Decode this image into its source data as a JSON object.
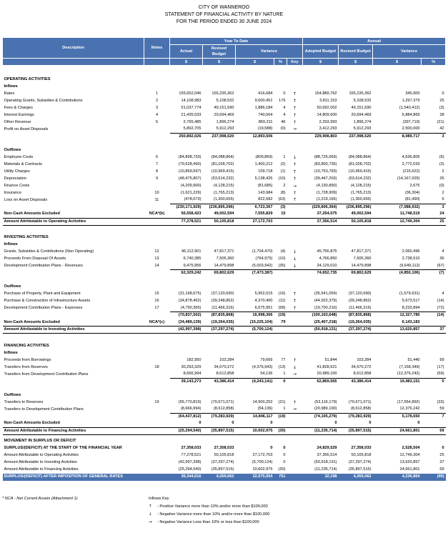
{
  "header": {
    "title": [
      "CITY OF WANNEROO",
      "STATEMENT OF FINANCIAL ACTIVITY BY NATURE",
      "FOR THE PERIOD ENDED 30 JUNE 2024"
    ]
  },
  "columns": {
    "year_to_date": "Year To Date",
    "annual": "Annual",
    "names": [
      "Description",
      "Notes",
      "Actual",
      "Revised Budget",
      "Variance",
      "Adopted Budget",
      "Revised Budget",
      "Variance"
    ],
    "units": [
      "$",
      "$",
      "$",
      "%",
      "Key",
      "$",
      "$",
      "$",
      "%"
    ]
  },
  "sections": [
    {
      "title": "OPERATING ACTIVITIES",
      "inflows": {
        "label": "Inflows",
        "rows": [
          [
            "Rates",
            "1",
            "155,652,046",
            "155,235,362",
            "416,684",
            "0",
            "↑",
            "154,889,762",
            "155,235,362",
            "345,600",
            "0"
          ],
          [
            "Operating Grants, Subsidies & Contributions",
            "2",
            "14,108,983",
            "5,108,532",
            "9,000,451",
            "176",
            "↑",
            "3,811,153",
            "5,108,532",
            "1,297,379",
            "25"
          ],
          [
            "Fees & Charges",
            "3",
            "51,037,774",
            "49,151,590",
            "1,886,184",
            "4",
            "↑",
            "50,692,002",
            "49,151,590",
            "(1,540,412)",
            "(3)"
          ],
          [
            "Interest Earnings",
            "4",
            "21,435,033",
            "20,694,469",
            "740,564",
            "4",
            "↑",
            "14,809,600",
            "20,694,469",
            "5,884,869",
            "28"
          ],
          [
            "Other Revenue",
            "5",
            "2,765,485",
            "1,896,274",
            "869,211",
            "46",
            "↑",
            "2,293,993",
            "1,896,274",
            "(397,719)",
            "(21)"
          ],
          [
            "Profit on Asset Disposals",
            null,
            "5,892,705",
            "5,912,293",
            "(19,588)",
            "(0)",
            "→",
            "3,412,293",
            "5,912,293",
            "2,500,000",
            "42"
          ]
        ],
        "subtotal": [
          null,
          null,
          "250,892,026",
          "237,998,520",
          "12,893,506",
          null,
          null,
          "229,908,803",
          "237,998,520",
          "8,089,717",
          "3"
        ]
      },
      "outflows": {
        "label": "Outflows",
        "rows": [
          [
            "Employee Costs",
            "6",
            "(84,898,733)",
            "(84,088,864)",
            "(809,869)",
            "1",
            "↓",
            "(88,725,669)",
            "(84,088,864)",
            "4,636,805",
            "(6)"
          ],
          [
            "Materials & Contracts",
            "7",
            "(79,628,490)",
            "(81,028,702)",
            "1,400,212",
            "(2)",
            "↑",
            "(83,800,735)",
            "(81,028,702)",
            "2,772,033",
            "(3)"
          ],
          [
            "Utility Charges",
            "8",
            "(10,859,697)",
            "(10,969,415)",
            "109,718",
            "(1)",
            "↑",
            "(10,753,793)",
            "(10,969,415)",
            "(215,622)",
            "2"
          ],
          [
            "Depreciation",
            "9",
            "(48,475,807)",
            "(53,614,232)",
            "5,138,425",
            "(10)",
            "↑",
            "(39,447,203)",
            "(53,614,232)",
            "(14,167,029)",
            "26"
          ],
          [
            "Finance Costs",
            null,
            "(4,209,900)",
            "(4,128,215)",
            "(81,685)",
            "2",
            "→",
            "(4,130,890)",
            "(4,128,215)",
            "2,675",
            "(0)"
          ],
          [
            "Insurance",
            "10",
            "(1,621,229)",
            "(1,765,213)",
            "143,984",
            "(8)",
            "↑",
            "(1,728,909)",
            "(1,765,213)",
            "(36,304)",
            "2"
          ],
          [
            "Loss on Asset Disposals",
            "11",
            "(478,073)",
            "(1,300,655)",
            "822,582",
            "(63)",
            "↑",
            "(1,219,165)",
            "(1,300,655)",
            "(81,490)",
            "6"
          ]
        ],
        "subtotal": [
          null,
          null,
          "(230,171,929)",
          "(236,895,296)",
          "6,723,367",
          "(3)",
          null,
          "(229,806,364)",
          "(236,895,296)",
          "(7,088,932)",
          "3"
        ]
      },
      "non_cash": [
        "Non-Cash Amounts Excluded",
        "NCA*(b)",
        "56,558,423",
        "49,002,594",
        "7,555,829",
        "15",
        null,
        "37,254,075",
        "49,002,594",
        "11,748,519",
        "24"
      ],
      "total": [
        "Amount Attributable to Operating Activities",
        null,
        "77,278,521",
        "50,105,818",
        "27,172,703",
        null,
        null,
        "37,356,514",
        "50,105,818",
        "12,749,304",
        "25"
      ]
    },
    {
      "title": "INVESTING ACTIVITIES",
      "inflows": {
        "label": "Inflows",
        "rows": [
          [
            "Grants, Subsidies & Contributions (Non Operating)",
            "12",
            "46,112,901",
            "47,817,371",
            "(1,704,470)",
            "(4)",
            "↓",
            "45,756,875",
            "47,817,371",
            "2,060,496",
            "4"
          ],
          [
            "Proceeds From Disposal Of Assets",
            "13",
            "6,740,385",
            "7,505,360",
            "(764,975)",
            "(10)",
            "↓",
            "4,766,850",
            "7,505,360",
            "2,738,510",
            "36"
          ],
          [
            "Development Contribution Plans - Revenues",
            "14",
            "9,475,956",
            "14,479,898",
            "(5,003,942)",
            "(35)",
            "↓",
            "24,129,010",
            "14,479,898",
            "(9,649,112)",
            "(67)"
          ]
        ],
        "subtotal": [
          null,
          null,
          "62,329,242",
          "69,802,629",
          "(7,473,387)",
          null,
          null,
          "74,652,735",
          "69,802,629",
          "(4,850,106)",
          "(7)"
        ]
      },
      "outflows": {
        "label": "Outflows",
        "rows": [
          [
            "Purchase of Property, Plant and Equipment",
            "15",
            "(31,168,675)",
            "(37,120,690)",
            "5,952,015",
            "(16)",
            "↑",
            "(35,541,059)",
            "(37,120,690)",
            "(1,579,631)",
            "4"
          ],
          [
            "Purchase & Construction of Infrastructure Assets",
            "16",
            "(34,878,462)",
            "(39,248,862)",
            "4,370,400",
            "(11)",
            "↑",
            "(44,922,379)",
            "(39,248,862)",
            "5,673,517",
            "(14)"
          ],
          [
            "Development Contribution Plans - Expenses",
            "17",
            "(4,790,365)",
            "(11,466,316)",
            "6,675,951",
            "(58)",
            "↑",
            "(19,700,210)",
            "(11,466,316)",
            "8,233,894",
            "(72)"
          ]
        ],
        "subtotal": [
          null,
          null,
          "(70,837,502)",
          "(87,835,868)",
          "16,998,366",
          "(19)",
          null,
          "(100,163,648)",
          "(87,835,868)",
          "12,327,780",
          "(14)"
        ]
      },
      "non_cash": [
        "Non-Cash Amounts Excluded",
        "NCA*(c)",
        "(34,489,139)",
        "(19,264,035)",
        "(15,225,104)",
        "79",
        null,
        "(25,407,218)",
        "(19,264,035)",
        "6,143,183",
        null
      ],
      "total": [
        "Amount Attributable to Investing Activities",
        null,
        "(42,997,398)",
        "(37,297,274)",
        "(5,700,124)",
        null,
        null,
        "(50,918,131)",
        "(37,297,274)",
        "13,620,857",
        "37"
      ]
    },
    {
      "title": "FINANCING ACTIVITIES",
      "inflows": {
        "label": "Inflows",
        "rows": [
          [
            "Proceeds from Borrowings",
            null,
            "182,950",
            "103,284",
            "79,666",
            "77",
            "↑",
            "51,844",
            "103,284",
            "51,440",
            "99"
          ],
          [
            "Transfers from Reserves",
            "18",
            "30,293,329",
            "34,670,272",
            "(4,376,943)",
            "(13)",
            "↓",
            "41,828,621",
            "34,670,272",
            "(7,158,349)",
            "(17)"
          ],
          [
            "Transfers from Development Contribution Plans",
            null,
            "8,666,994",
            "8,612,858",
            "54,136",
            "1",
            "→",
            "20,989,100",
            "8,612,858",
            "(12,376,242)",
            "(59)"
          ]
        ],
        "subtotal": [
          null,
          null,
          "39,143,273",
          "43,386,414",
          "(4,243,141)",
          "0",
          null,
          "62,869,565",
          "43,386,414",
          "19,483,151",
          "0"
        ]
      },
      "outflows": {
        "label": "Outflows",
        "rows": [
          [
            "Transfers to Reserves",
            "19",
            "(55,770,819)",
            "(70,671,071)",
            "14,900,252",
            "(21)",
            "↑",
            "(53,116,179)",
            "(70,671,071)",
            "(17,554,892)",
            "(33)"
          ],
          [
            "Transfers to Development Contribution Plans",
            null,
            "(8,666,994)",
            "(8,612,858)",
            "(54,136)",
            "1",
            "→",
            "(20,989,100)",
            "(8,612,858)",
            "12,376,242",
            "59"
          ]
        ],
        "subtotal": [
          null,
          null,
          "(64,437,812)",
          "(79,283,929)",
          "14,846,117",
          "(19)",
          null,
          "(74,105,279)",
          "(79,283,929)",
          "5,178,650",
          "7"
        ]
      },
      "non_cash": [
        "Non-Cash Amounts Excluded",
        null,
        "0",
        "0",
        "0",
        null,
        null,
        "0",
        "0",
        "0",
        null
      ],
      "total": [
        "Amount Attributable to Financing Activities",
        null,
        "(25,294,540)",
        "(35,897,515)",
        "10,602,975",
        "(30)",
        null,
        "(11,235,714)",
        "(35,897,515)",
        "24,661,801",
        "69"
      ]
    }
  ],
  "movement": {
    "title": "MOVEMENT IN SURPLUS OR DEFICIT",
    "opening": [
      "SURPLUS/(DEFICIT) AT THE START OF THE FINANCIAL YEAR",
      null,
      "27,358,033",
      "27,358,033",
      "0",
      "0",
      null,
      "24,829,529",
      "27,358,033",
      "2,528,504",
      "0"
    ],
    "rows": [
      [
        "Amount Attributable to Operating Activities",
        null,
        "77,278,521",
        "50,105,818",
        "27,172,703",
        "0",
        null,
        "37,356,514",
        "50,105,818",
        "12,749,304",
        "25"
      ],
      [
        "Amount Attributable to Investing Activities",
        null,
        "(42,997,398)",
        "(37,297,274)",
        "(5,700,124)",
        "0",
        null,
        "(50,918,131)",
        "(37,297,274)",
        "13,620,857",
        "37"
      ],
      [
        "Amount Attributable to Financing Activities",
        null,
        "(25,294,540)",
        "(35,897,515)",
        "10,602,975",
        "(30)",
        null,
        "(11,235,714)",
        "(35,897,515)",
        "24,661,801",
        "69"
      ]
    ],
    "closing": [
      "SURPLUS/(DEFICIT) AFTER IMPOSITION OF GENERAL RATES",
      null,
      "36,344,616",
      "4,269,062",
      "32,075,554",
      "751",
      null,
      "32,198",
      "4,269,062",
      "4,236,864",
      "(99)"
    ]
  },
  "footer": {
    "note": "* NCA - Net Current Assets (Attachment 1)",
    "key_title": "Inflows Key",
    "key": [
      {
        "symbol": "↑",
        "text": "- Positive Variance more than 10% and/or more than $100,000"
      },
      {
        "symbol": "↓",
        "text": "- Negative Variance more than 10% and/or more than $100,000"
      },
      {
        "symbol": "→",
        "text": "- Negative Variance Less than 10% or less than $100,000"
      }
    ]
  }
}
